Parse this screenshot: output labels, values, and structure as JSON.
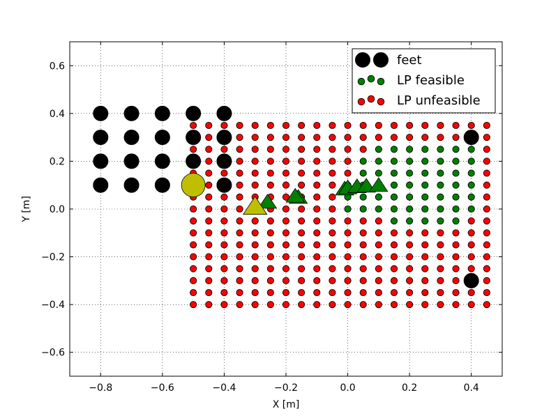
{
  "chart_data": {
    "type": "scatter",
    "xlabel": "X [m]",
    "ylabel": "Y [m]",
    "xlim": [
      -0.9,
      0.5
    ],
    "ylim": [
      -0.7,
      0.7
    ],
    "xticks": [
      -0.8,
      -0.6,
      -0.4,
      -0.2,
      0.0,
      0.2,
      0.4
    ],
    "yticks": [
      -0.6,
      -0.4,
      -0.2,
      0.0,
      0.2,
      0.4,
      0.6
    ],
    "xtick_labels": [
      "−0.8",
      "−0.6",
      "−0.4",
      "−0.2",
      "0.0",
      "0.2",
      "0.4"
    ],
    "ytick_labels": [
      "−0.6",
      "−0.4",
      "−0.2",
      "0.0",
      "0.2",
      "0.4",
      "0.6"
    ],
    "grid": true,
    "legend_position": "top-right",
    "colors": {
      "feet": "#000000",
      "feasible": "#008000",
      "unfeasible": "#ff0000",
      "highlight": "#bfbf00",
      "com_trajectory": "#008000"
    },
    "series": [
      {
        "name": "feet",
        "marker": "circle",
        "x": [
          -0.8,
          -0.7,
          -0.6,
          -0.5,
          -0.4,
          -0.8,
          -0.7,
          -0.6,
          -0.5,
          -0.4,
          -0.8,
          -0.7,
          -0.6,
          -0.5,
          -0.4,
          -0.8,
          -0.7,
          -0.6,
          -0.4,
          0.4,
          0.4
        ],
        "y": [
          0.4,
          0.4,
          0.4,
          0.4,
          0.4,
          0.3,
          0.3,
          0.3,
          0.3,
          0.3,
          0.2,
          0.2,
          0.2,
          0.2,
          0.2,
          0.1,
          0.1,
          0.1,
          0.1,
          0.3,
          -0.3
        ]
      },
      {
        "name": "LP feasible",
        "marker": "circle",
        "grid_x": {
          "start": -0.5,
          "step": 0.05,
          "count": 20
        },
        "grid_y": {
          "start": -0.4,
          "step": 0.05,
          "count": 16
        },
        "rows": [
          {
            "y": 0.25,
            "x_from": 0.1,
            "x_to": 0.4
          },
          {
            "y": 0.2,
            "x_from": 0.05,
            "x_to": 0.4
          },
          {
            "y": 0.15,
            "x_from": 0.05,
            "x_to": 0.4
          },
          {
            "y": 0.1,
            "x_from": 0.0,
            "x_to": 0.4
          },
          {
            "y": 0.05,
            "x_from": 0.0,
            "x_to": 0.4
          },
          {
            "y": 0.0,
            "x_from": 0.0,
            "x_to": 0.4
          },
          {
            "y": -0.05,
            "x_from": 0.15,
            "x_to": 0.35
          }
        ]
      },
      {
        "name": "LP unfeasible",
        "marker": "circle",
        "note_fill_rule": "all remaining grid points"
      },
      {
        "name": "",
        "marker": "triangle",
        "x": [
          -0.26,
          -0.16,
          -0.17,
          -0.01,
          0.0,
          0.03,
          0.06,
          0.1
        ],
        "y": [
          0.025,
          0.045,
          0.05,
          0.08,
          0.085,
          0.09,
          0.092,
          0.095
        ]
      },
      {
        "name": "",
        "marker": "highlight",
        "x": [
          -0.5,
          -0.3
        ],
        "y": [
          0.1,
          0.0
        ]
      }
    ],
    "legend": [
      {
        "label": "feet",
        "marker": "big-black"
      },
      {
        "label": "LP feasible",
        "marker": "small-green"
      },
      {
        "label": "LP unfeasible",
        "marker": "small-red"
      }
    ]
  }
}
